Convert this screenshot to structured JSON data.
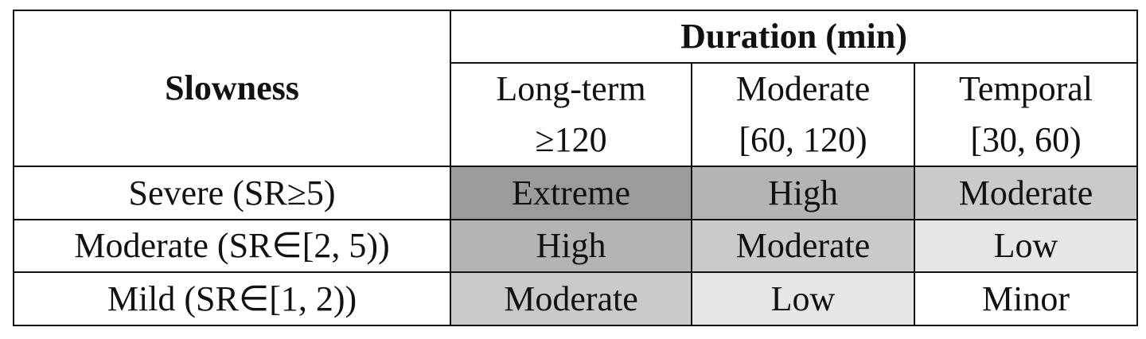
{
  "header": {
    "row_label": "Slowness",
    "group": "Duration (min)",
    "columns": [
      {
        "name": "Long-term",
        "range": "≥120"
      },
      {
        "name": "Moderate",
        "range": "[60, 120)"
      },
      {
        "name": "Temporal",
        "range": "[30, 60)"
      }
    ]
  },
  "rows": [
    {
      "label": "Severe (SR≥5)",
      "cells": [
        "Extreme",
        "High",
        "Moderate"
      ]
    },
    {
      "label": "Moderate (SR∈[2, 5))",
      "cells": [
        "High",
        "Moderate",
        "Low"
      ]
    },
    {
      "label": "Mild (SR∈[1, 2))",
      "cells": [
        "Moderate",
        "Low",
        "Minor"
      ]
    }
  ],
  "shades": {
    "Extreme": "#9b9b9b",
    "High": "#b4b4b4",
    "Moderate": "#cacaca",
    "Low": "#e6e6e6",
    "Minor": "#ffffff"
  }
}
